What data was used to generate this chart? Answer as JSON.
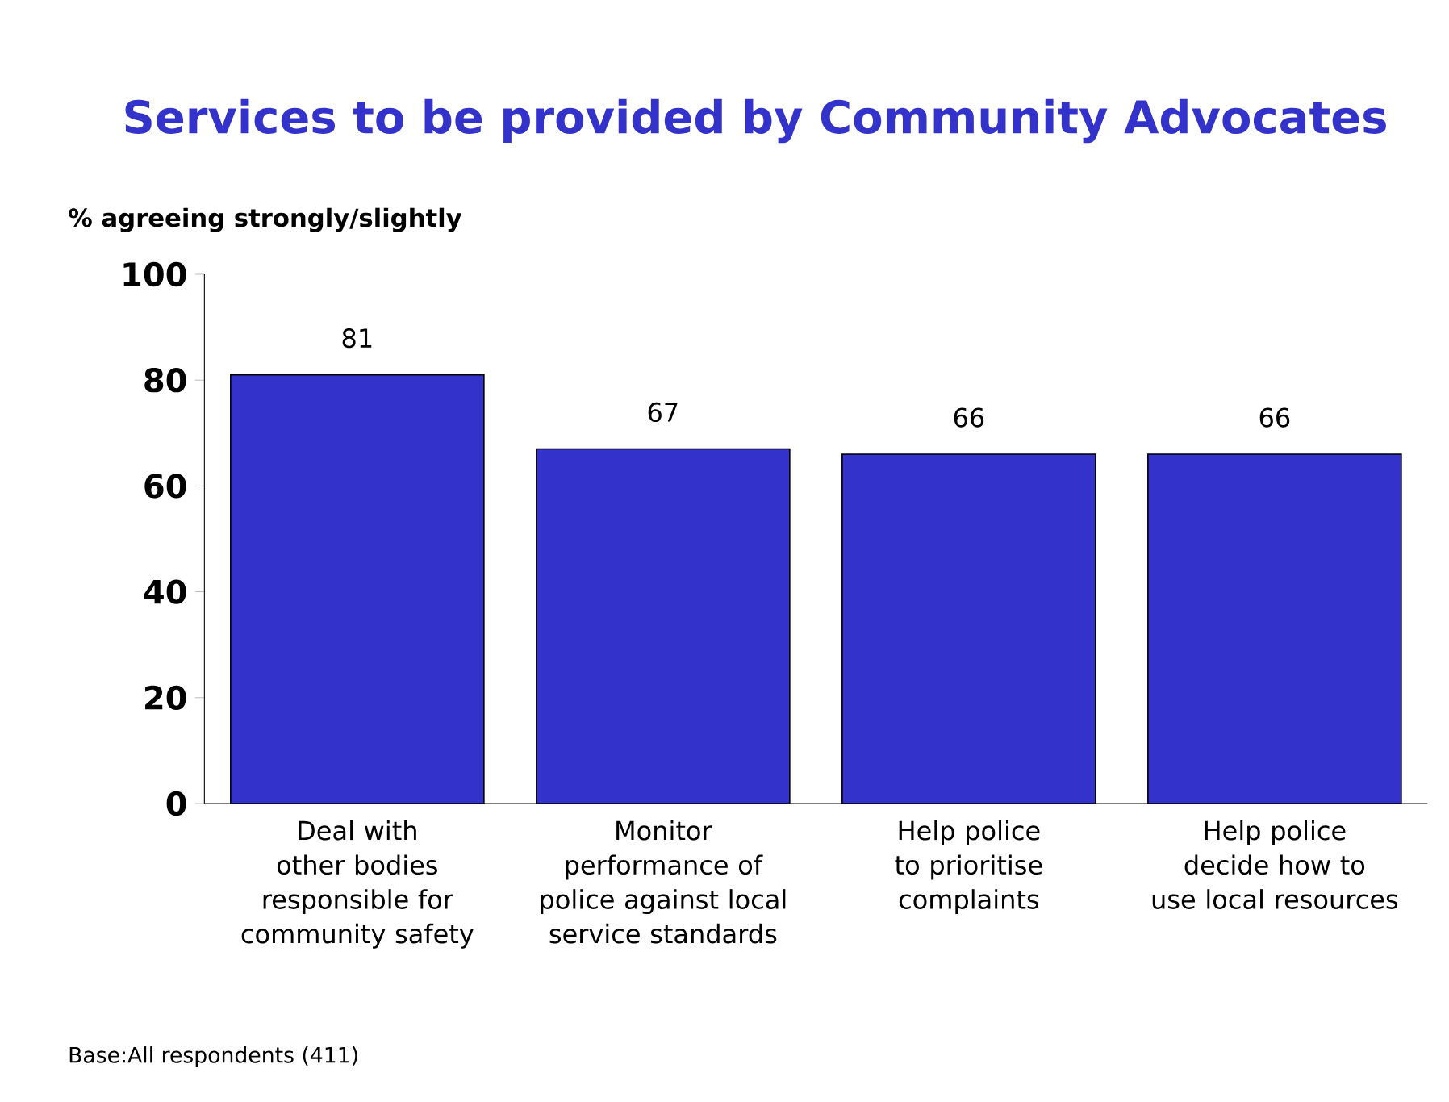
{
  "chart_data": {
    "type": "bar",
    "title": "Services to be provided by Community Advocates",
    "ylabel": "% agreeing strongly/slightly",
    "categories": [
      "Deal with other bodies responsible for community safety",
      "Monitor performance of police against local service standards",
      "Help police to prioritise complaints",
      "Help police decide how to use local resources"
    ],
    "values": [
      81,
      67,
      66,
      66
    ],
    "color": "#3333cc",
    "ylim": [
      0,
      100
    ],
    "yticks": [
      0,
      20,
      40,
      60,
      80,
      100
    ],
    "data_labels": true,
    "annotations": [
      "Base:All respondents (411)"
    ]
  }
}
